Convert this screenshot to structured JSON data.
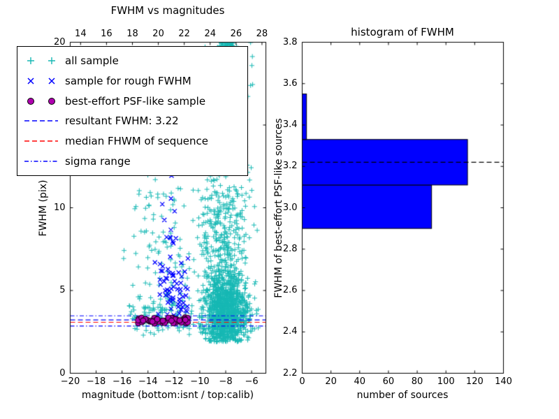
{
  "figure": {
    "background": "#ffffff"
  },
  "chart_data": [
    {
      "type": "scatter",
      "title": "FWHM vs magnitudes",
      "xlabel": "magnitude (bottom:isnt / top:calib)",
      "ylabel": "FWHM (pix)",
      "xlim": [
        -20,
        -4.9
      ],
      "ylim": [
        0,
        20
      ],
      "grid": false,
      "x_ticks": {
        "values": [
          -20,
          -18,
          -16,
          -14,
          -12,
          -10,
          -8,
          -6
        ],
        "labels": [
          "−20",
          "−18",
          "−16",
          "−14",
          "−12",
          "−10",
          "−8",
          "−6"
        ]
      },
      "top_axis": {
        "lim": [
          13.2,
          28.3
        ],
        "values": [
          14,
          16,
          18,
          20,
          22,
          24,
          26,
          28
        ],
        "labels": [
          "14",
          "16",
          "18",
          "20",
          "22",
          "24",
          "26",
          "28"
        ]
      },
      "y_ticks": {
        "values": [
          0,
          5,
          10,
          15,
          20
        ],
        "labels": [
          "0",
          "5",
          "10",
          "15",
          "20"
        ]
      },
      "series": [
        {
          "name": "all sample",
          "marker": "plus",
          "color": "#17b8b4",
          "seed": 42,
          "clusters": [
            {
              "n": 1100,
              "x": -8.0,
              "sx": 0.85,
              "y": 3.7,
              "sy": 1.1,
              "ymin": 1.9,
              "ymax": 20,
              "xmin": -10.2,
              "xmax": -5.3
            },
            {
              "n": 420,
              "x": -8.2,
              "sx": 0.95,
              "y": 8.0,
              "sy": 3.0,
              "ymin": 2.2,
              "ymax": 20,
              "xmin": -10.2,
              "xmax": -5.5
            },
            {
              "n": 130,
              "x": -8.3,
              "sx": 1.0,
              "y": 16.5,
              "sy": 2.2,
              "ymin": 11,
              "ymax": 20,
              "xmin": -10.4,
              "xmax": -5.8
            },
            {
              "n": 70,
              "x": -7.9,
              "sx": 0.4,
              "y": 19.7,
              "sy": 0.3,
              "ymin": 18.8,
              "ymax": 20
            },
            {
              "n": 150,
              "x": -12.9,
              "sx": 1.4,
              "y": 8.5,
              "sy": 4.5,
              "ymin": 2.6,
              "ymax": 20,
              "xmin": -15.9,
              "xmax": -10.4
            },
            {
              "n": 90,
              "x": -13.0,
              "sx": 1.3,
              "y": 3.4,
              "sy": 0.5,
              "ymin": 2.3,
              "ymax": 5.0,
              "xmin": -15.5,
              "xmax": -10.5
            }
          ]
        },
        {
          "name": "sample for rough FWHM",
          "marker": "x",
          "color": "#0000ff",
          "seed": 7,
          "clusters": [
            {
              "n": 55,
              "x": -12.0,
              "sx": 0.7,
              "y": 4.9,
              "sy": 1.1,
              "ymin": 3.25,
              "ymax": 7.5,
              "xmin": -13.6,
              "xmax": -10.8
            },
            {
              "n": 18,
              "x": -12.2,
              "sx": 0.6,
              "y": 8.8,
              "sy": 1.7,
              "ymin": 6.0,
              "ymax": 12.5,
              "xmin": -13.5,
              "xmax": -11.0
            }
          ]
        },
        {
          "name": "best-effort PSF-like sample",
          "marker": "circle",
          "color": "#b000b0",
          "edge": "#000000",
          "seed": 99,
          "clusters": [
            {
              "n": 52,
              "x0": -14.8,
              "x1": -10.9,
              "y": 3.2,
              "sy": 0.1,
              "ymin": 2.95,
              "ymax": 3.5
            }
          ]
        }
      ],
      "hlines": [
        {
          "name": "resultant FWHM",
          "y": 3.22,
          "color": "#0000ff",
          "style": "dashed"
        },
        {
          "name": "median FHWM",
          "y": 3.08,
          "color": "#ff0000",
          "style": "dashed"
        },
        {
          "name": "sigma range",
          "y": [
            3.47,
            2.85
          ],
          "color": "#0000ff",
          "style": "dashdot"
        }
      ],
      "legend": {
        "position": "upper-left",
        "items": [
          {
            "label": "all sample",
            "sample": "plus",
            "color": "#17b8b4"
          },
          {
            "label": "sample for rough FWHM",
            "sample": "x",
            "color": "#0000ff"
          },
          {
            "label": "best-effort PSF-like sample",
            "sample": "circle",
            "color": "#b000b0"
          },
          {
            "label": "resultant FWHM: 3.22",
            "sample": "dashed",
            "color": "#0000ff"
          },
          {
            "label": "median FHWM of sequence",
            "sample": "dashed",
            "color": "#ff0000"
          },
          {
            "label": "sigma range",
            "sample": "dashdot",
            "color": "#0000ff"
          }
        ]
      }
    },
    {
      "type": "bar",
      "orientation": "horizontal",
      "title": "histogram of FWHM",
      "xlabel": "number of sources",
      "ylabel": "FWHM of best-effort PSF-like sources",
      "xlim": [
        0,
        140
      ],
      "ylim": [
        2.2,
        3.8
      ],
      "grid": false,
      "x_ticks": {
        "values": [
          0,
          20,
          40,
          60,
          80,
          100,
          120,
          140
        ],
        "labels": [
          "0",
          "20",
          "40",
          "60",
          "80",
          "100",
          "120",
          "140"
        ]
      },
      "y_ticks": {
        "values": [
          2.2,
          2.4,
          2.6,
          2.8,
          3.0,
          3.2,
          3.4,
          3.6,
          3.8
        ],
        "labels": [
          "2.2",
          "2.4",
          "2.6",
          "2.8",
          "3.0",
          "3.2",
          "3.4",
          "3.6",
          "3.8"
        ]
      },
      "bar_color": "#0000ff",
      "bar_edge": "#000000",
      "bins": {
        "edges": [
          2.9,
          3.11,
          3.33,
          3.55
        ],
        "counts": [
          90,
          115,
          3
        ]
      },
      "mean_line": {
        "y": 3.22,
        "color": "#000000",
        "style": "dashed"
      }
    }
  ]
}
